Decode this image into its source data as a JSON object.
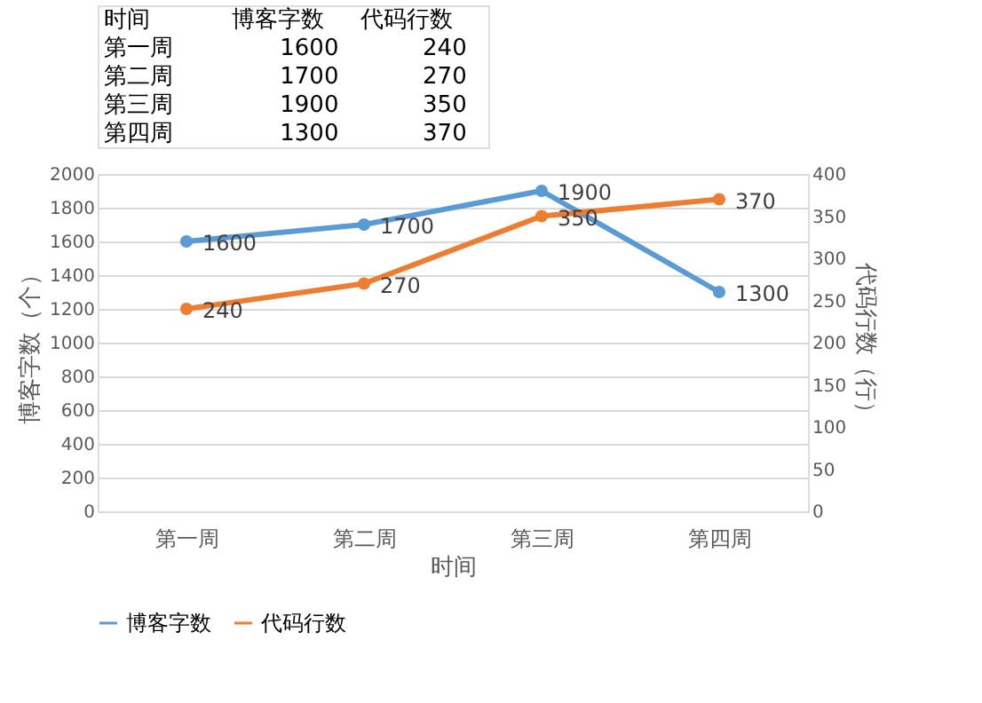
{
  "chart_data": {
    "type": "line",
    "xlabel": "时间",
    "ylabel": "博客字数（个）",
    "y2label": "代码行数（行）",
    "categories": [
      "第一周",
      "第二周",
      "第三周",
      "第四周"
    ],
    "series": [
      {
        "name": "博客字数",
        "color": "#5b9bd5",
        "values": [
          1600,
          1700,
          1900,
          1300
        ]
      },
      {
        "name": "代码行数",
        "color": "#ed7d31",
        "values": [
          240,
          270,
          350,
          370
        ],
        "axis": "y2"
      }
    ],
    "annotations": [
      "1600",
      "240",
      "1700",
      "270",
      "1900",
      "350",
      "1300",
      "370"
    ],
    "ylim": [
      0,
      2000
    ],
    "yticks": [
      0,
      200,
      400,
      600,
      800,
      1000,
      1200,
      1400,
      1600,
      1800,
      2000
    ],
    "y2lim": [
      0,
      400
    ],
    "y2ticks": [
      0,
      50,
      100,
      150,
      200,
      250,
      300,
      350,
      400
    ],
    "grid": "y",
    "legend": "bottom",
    "marker": "circle",
    "line_style": "solid",
    "data_labels": true
  }
}
